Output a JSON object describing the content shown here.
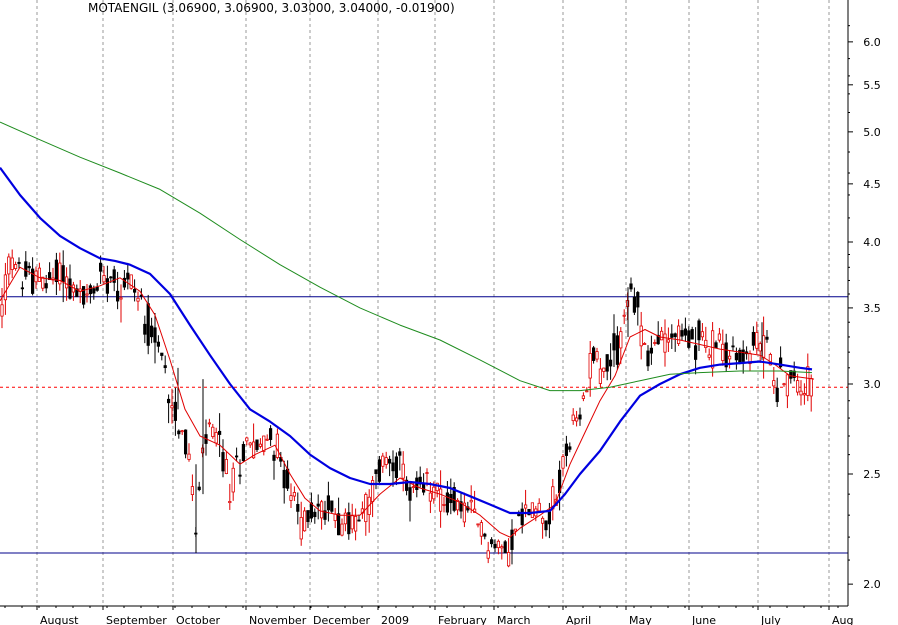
{
  "chart_data": {
    "type": "candlestick",
    "title": "MOTAENGIL (3.06900, 3.06900, 3.03000, 3.04000, -0.01900)",
    "y_axis": {
      "scale": "log",
      "ylim": [
        1.9,
        6.4
      ],
      "position": "right",
      "ticks": [
        "6.0",
        "5.5",
        "5.0",
        "4.5",
        "4.0",
        "3.5",
        "3.0",
        "2.5",
        "2.0"
      ]
    },
    "x_axis": {
      "xlim": [
        0,
        848
      ],
      "months": [
        {
          "label": "August",
          "x": 37
        },
        {
          "label": "September",
          "x": 103
        },
        {
          "label": "October",
          "x": 173
        },
        {
          "label": "November",
          "x": 246
        },
        {
          "label": "December",
          "x": 310
        },
        {
          "label": "2009",
          "x": 378
        },
        {
          "label": "February",
          "x": 435
        },
        {
          "label": "March",
          "x": 494
        },
        {
          "label": "April",
          "x": 563
        },
        {
          "label": "May",
          "x": 626
        },
        {
          "label": "June",
          "x": 689
        },
        {
          "label": "July",
          "x": 758
        },
        {
          "label": "Aug",
          "x": 829
        }
      ]
    },
    "grid": "vertical dashed",
    "horizontal_lines": [
      {
        "value": 3.58,
        "style": "solid",
        "color": "#00008B"
      },
      {
        "value": 2.98,
        "style": "dashed",
        "color": "#FF0000"
      },
      {
        "value": 2.13,
        "style": "solid",
        "color": "#00008B"
      }
    ],
    "price_path": [
      [
        0,
        3.4
      ],
      [
        10,
        3.85
      ],
      [
        20,
        3.75
      ],
      [
        35,
        3.72
      ],
      [
        50,
        3.68
      ],
      [
        60,
        3.8
      ],
      [
        75,
        3.6
      ],
      [
        90,
        3.55
      ],
      [
        100,
        3.72
      ],
      [
        110,
        3.78
      ],
      [
        120,
        3.65
      ],
      [
        130,
        3.72
      ],
      [
        140,
        3.55
      ],
      [
        150,
        3.35
      ],
      [
        160,
        3.2
      ],
      [
        170,
        2.95
      ],
      [
        178,
        2.8
      ],
      [
        184,
        2.7
      ],
      [
        190,
        2.55
      ],
      [
        196,
        2.2
      ],
      [
        202,
        2.58
      ],
      [
        210,
        2.75
      ],
      [
        220,
        2.65
      ],
      [
        230,
        2.42
      ],
      [
        240,
        2.58
      ],
      [
        250,
        2.7
      ],
      [
        260,
        2.62
      ],
      [
        270,
        2.72
      ],
      [
        282,
        2.55
      ],
      [
        292,
        2.38
      ],
      [
        302,
        2.26
      ],
      [
        312,
        2.32
      ],
      [
        322,
        2.32
      ],
      [
        332,
        2.34
      ],
      [
        342,
        2.28
      ],
      [
        352,
        2.26
      ],
      [
        362,
        2.3
      ],
      [
        372,
        2.4
      ],
      [
        382,
        2.55
      ],
      [
        392,
        2.6
      ],
      [
        400,
        2.52
      ],
      [
        410,
        2.4
      ],
      [
        420,
        2.4
      ],
      [
        430,
        2.45
      ],
      [
        440,
        2.4
      ],
      [
        450,
        2.35
      ],
      [
        460,
        2.35
      ],
      [
        470,
        2.3
      ],
      [
        480,
        2.25
      ],
      [
        490,
        2.17
      ],
      [
        500,
        2.14
      ],
      [
        510,
        2.17
      ],
      [
        520,
        2.28
      ],
      [
        530,
        2.33
      ],
      [
        540,
        2.32
      ],
      [
        550,
        2.32
      ],
      [
        558,
        2.4
      ],
      [
        565,
        2.62
      ],
      [
        572,
        2.7
      ],
      [
        580,
        2.8
      ],
      [
        588,
        3.05
      ],
      [
        595,
        3.3
      ],
      [
        600,
        3.05
      ],
      [
        608,
        3.15
      ],
      [
        616,
        3.2
      ],
      [
        622,
        3.35
      ],
      [
        628,
        3.58
      ],
      [
        635,
        3.55
      ],
      [
        640,
        3.4
      ],
      [
        648,
        3.15
      ],
      [
        655,
        3.25
      ],
      [
        662,
        3.3
      ],
      [
        670,
        3.32
      ],
      [
        680,
        3.3
      ],
      [
        690,
        3.28
      ],
      [
        700,
        3.3
      ],
      [
        710,
        3.2
      ],
      [
        718,
        3.28
      ],
      [
        728,
        3.2
      ],
      [
        738,
        3.15
      ],
      [
        748,
        3.2
      ],
      [
        758,
        3.25
      ],
      [
        765,
        3.3
      ],
      [
        770,
        3.15
      ],
      [
        776,
        3.0
      ],
      [
        782,
        3.05
      ],
      [
        790,
        3.0
      ],
      [
        800,
        3.02
      ],
      [
        808,
        3.02
      ],
      [
        814,
        3.04
      ]
    ],
    "series": [
      {
        "name": "",
        "kind": "ma_fast",
        "color": "#E00000",
        "points": [
          [
            0,
            3.55
          ],
          [
            20,
            3.8
          ],
          [
            40,
            3.72
          ],
          [
            60,
            3.7
          ],
          [
            80,
            3.62
          ],
          [
            100,
            3.66
          ],
          [
            120,
            3.72
          ],
          [
            140,
            3.62
          ],
          [
            155,
            3.45
          ],
          [
            170,
            3.15
          ],
          [
            185,
            2.85
          ],
          [
            200,
            2.7
          ],
          [
            220,
            2.65
          ],
          [
            240,
            2.55
          ],
          [
            255,
            2.6
          ],
          [
            275,
            2.65
          ],
          [
            290,
            2.5
          ],
          [
            305,
            2.38
          ],
          [
            320,
            2.32
          ],
          [
            340,
            2.3
          ],
          [
            360,
            2.3
          ],
          [
            380,
            2.4
          ],
          [
            400,
            2.48
          ],
          [
            420,
            2.43
          ],
          [
            440,
            2.4
          ],
          [
            460,
            2.36
          ],
          [
            480,
            2.3
          ],
          [
            500,
            2.22
          ],
          [
            510,
            2.2
          ],
          [
            520,
            2.24
          ],
          [
            540,
            2.3
          ],
          [
            555,
            2.35
          ],
          [
            570,
            2.55
          ],
          [
            585,
            2.72
          ],
          [
            600,
            2.9
          ],
          [
            615,
            3.05
          ],
          [
            630,
            3.3
          ],
          [
            645,
            3.35
          ],
          [
            660,
            3.3
          ],
          [
            680,
            3.28
          ],
          [
            700,
            3.25
          ],
          [
            720,
            3.22
          ],
          [
            740,
            3.2
          ],
          [
            760,
            3.18
          ],
          [
            775,
            3.12
          ],
          [
            790,
            3.05
          ],
          [
            814,
            3.03
          ]
        ]
      },
      {
        "name": "",
        "kind": "ma_mid",
        "color": "#0000E0",
        "points": [
          [
            0,
            4.65
          ],
          [
            20,
            4.4
          ],
          [
            40,
            4.2
          ],
          [
            60,
            4.05
          ],
          [
            80,
            3.95
          ],
          [
            100,
            3.87
          ],
          [
            115,
            3.85
          ],
          [
            130,
            3.82
          ],
          [
            150,
            3.75
          ],
          [
            170,
            3.6
          ],
          [
            190,
            3.38
          ],
          [
            210,
            3.18
          ],
          [
            230,
            3.0
          ],
          [
            250,
            2.85
          ],
          [
            270,
            2.78
          ],
          [
            290,
            2.7
          ],
          [
            310,
            2.6
          ],
          [
            330,
            2.53
          ],
          [
            350,
            2.48
          ],
          [
            370,
            2.45
          ],
          [
            390,
            2.45
          ],
          [
            410,
            2.46
          ],
          [
            430,
            2.45
          ],
          [
            450,
            2.43
          ],
          [
            470,
            2.39
          ],
          [
            490,
            2.35
          ],
          [
            510,
            2.31
          ],
          [
            530,
            2.31
          ],
          [
            550,
            2.32
          ],
          [
            565,
            2.4
          ],
          [
            580,
            2.5
          ],
          [
            600,
            2.62
          ],
          [
            620,
            2.78
          ],
          [
            640,
            2.93
          ],
          [
            660,
            3.0
          ],
          [
            680,
            3.06
          ],
          [
            700,
            3.1
          ],
          [
            720,
            3.12
          ],
          [
            740,
            3.13
          ],
          [
            760,
            3.14
          ],
          [
            780,
            3.12
          ],
          [
            800,
            3.1
          ],
          [
            812,
            3.09
          ]
        ]
      },
      {
        "name": "",
        "kind": "ma_slow",
        "color": "#1E8C1E",
        "points": [
          [
            0,
            5.1
          ],
          [
            40,
            4.92
          ],
          [
            80,
            4.75
          ],
          [
            120,
            4.6
          ],
          [
            160,
            4.45
          ],
          [
            200,
            4.24
          ],
          [
            240,
            4.02
          ],
          [
            280,
            3.82
          ],
          [
            320,
            3.65
          ],
          [
            360,
            3.5
          ],
          [
            400,
            3.38
          ],
          [
            440,
            3.28
          ],
          [
            480,
            3.15
          ],
          [
            520,
            3.02
          ],
          [
            550,
            2.96
          ],
          [
            580,
            2.96
          ],
          [
            610,
            2.98
          ],
          [
            640,
            3.02
          ],
          [
            670,
            3.06
          ],
          [
            700,
            3.07
          ],
          [
            740,
            3.08
          ],
          [
            780,
            3.08
          ],
          [
            812,
            3.07
          ]
        ]
      }
    ]
  }
}
